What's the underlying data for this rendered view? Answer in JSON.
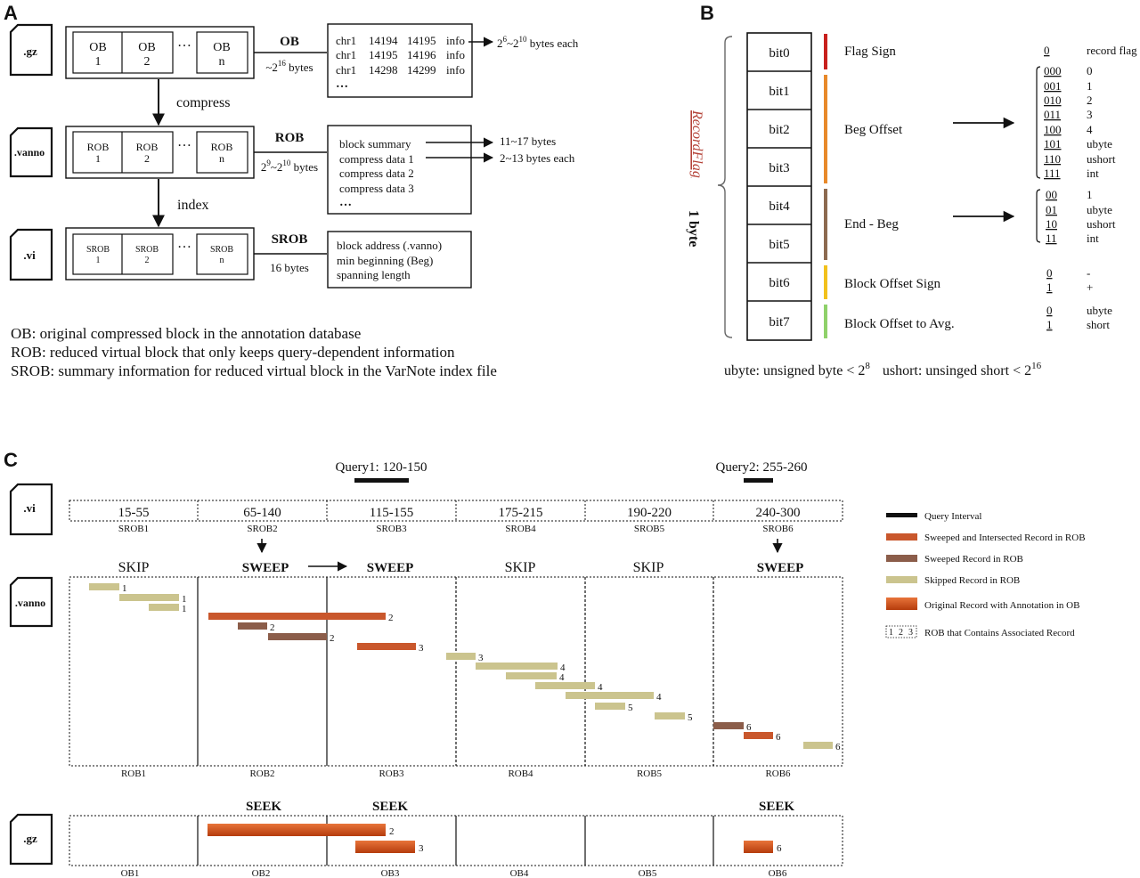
{
  "panel_labels": {
    "a": "A",
    "b": "B",
    "c": "C"
  },
  "colors": {
    "flag_red": "#c8201d",
    "flag_orange": "#e8892a",
    "flag_brown": "#8c6a50",
    "flag_yellow": "#f2c11c",
    "flag_green": "#8fd16a",
    "sweep_intersect": "#c9572c",
    "swept": "#8b5d4a",
    "skipped": "#cbc48e",
    "original": "#c64a14",
    "range_red": "#b5443a",
    "action_red": "#8b0000"
  },
  "panel_a": {
    "files": {
      "gz": ".gz",
      "vanno": ".vanno",
      "vi": ".vi"
    },
    "ob_row": {
      "block1": [
        "OB",
        "1"
      ],
      "block2": [
        "OB",
        "2"
      ],
      "ellipsis": "…",
      "blockn": [
        "OB",
        "n"
      ],
      "label": "OB",
      "size": "~2",
      "size_sup": "16",
      "size_tail": " bytes"
    },
    "ob_detail": [
      [
        "chr1",
        "14194",
        "14195",
        "info"
      ],
      [
        "chr1",
        "14195",
        "14196",
        "info"
      ],
      [
        "chr1",
        "14298",
        "14299",
        "info"
      ]
    ],
    "ob_detail_more": "…",
    "ob_each": {
      "pre": "2",
      "sup1": "6",
      "mid": "~2",
      "sup2": "10",
      "post": " bytes each"
    },
    "compress": "compress",
    "rob_row": {
      "block1": [
        "ROB",
        "1"
      ],
      "block2": [
        "ROB",
        "2"
      ],
      "ellipsis": "…",
      "blockn": [
        "ROB",
        "n"
      ],
      "label": "ROB",
      "size_pre": "2",
      "sup1": "9",
      "mid": "~2",
      "sup2": "10",
      "post": " bytes"
    },
    "rob_detail": [
      "block summary",
      "compress data 1",
      "compress data 2",
      "compress data 3"
    ],
    "rob_detail_more": "…",
    "rob_summary_size": "11~17 bytes",
    "rob_data_size": "2~13 bytes each",
    "index": "index",
    "srob_row": {
      "block1": [
        "SROB",
        "1"
      ],
      "block2": [
        "SROB",
        "2"
      ],
      "ellipsis": "…",
      "blockn": [
        "SROB",
        "n"
      ],
      "label": "SROB",
      "size": "16 bytes"
    },
    "srob_detail": [
      "block address (.vanno)",
      "min beginning (Beg)",
      "spanning length"
    ],
    "legend": [
      "OB: original compressed block in the annotation database",
      "ROB: reduced virtual block that only keeps query-dependent information",
      "SROB: summary information for reduced virtual block in the VarNote index file"
    ]
  },
  "panel_b": {
    "bits": [
      "bit0",
      "bit1",
      "bit2",
      "bit3",
      "bit4",
      "bit5",
      "bit6",
      "bit7"
    ],
    "record_flag": "RecordFlag",
    "one_byte": "1 byte",
    "fields": [
      "Flag Sign",
      "Beg Offset",
      "End - Beg",
      "Block Offset Sign",
      "Block Offset to Avg."
    ],
    "flag_sign": {
      "code": "0",
      "meaning": "record flag"
    },
    "beg_offset": [
      [
        "000",
        "0"
      ],
      [
        "001",
        "1"
      ],
      [
        "010",
        "2"
      ],
      [
        "011",
        "3"
      ],
      [
        "100",
        "4"
      ],
      [
        "101",
        "ubyte"
      ],
      [
        "110",
        "ushort"
      ],
      [
        "111",
        "int"
      ]
    ],
    "end_beg": [
      [
        "00",
        "1"
      ],
      [
        "01",
        "ubyte"
      ],
      [
        "10",
        "ushort"
      ],
      [
        "11",
        "int"
      ]
    ],
    "block_offset_sign": [
      [
        "0",
        "-"
      ],
      [
        "1",
        "+"
      ]
    ],
    "block_offset_avg": [
      [
        "0",
        "ubyte"
      ],
      [
        "1",
        "short"
      ]
    ],
    "footnote": {
      "a": "ubyte: unsigned byte < 2",
      "a_sup": "8",
      "b": "ushort: unsinged short < 2",
      "b_sup": "16"
    }
  },
  "panel_c": {
    "query1": "Query1: 120-150",
    "query2": "Query2: 255-260",
    "files": {
      "vi": ".vi",
      "vanno": ".vanno",
      "gz": ".gz"
    },
    "srob_ranges": [
      "15-55",
      "65-140",
      "115-155",
      "175-215",
      "190-220",
      "240-300"
    ],
    "srob_range_highlight": [
      false,
      true,
      true,
      false,
      false,
      true
    ],
    "srob_labels": [
      "SROB1",
      "SROB2",
      "SROB3",
      "SROB4",
      "SROB5",
      "SROB6"
    ],
    "actions": [
      "SKIP",
      "SWEEP",
      "SWEEP",
      "SKIP",
      "SKIP",
      "SWEEP"
    ],
    "rob_labels": [
      "ROB1",
      "ROB2",
      "ROB3",
      "ROB4",
      "ROB5",
      "ROB6"
    ],
    "ob_labels": [
      "OB1",
      "OB2",
      "OB3",
      "OB4",
      "OB5",
      "OB6"
    ],
    "seek": [
      "",
      "SEEK",
      "SEEK",
      "",
      "",
      "SEEK"
    ],
    "records": [
      {
        "kind": "skipped",
        "label": "1"
      },
      {
        "kind": "skipped",
        "label": "1"
      },
      {
        "kind": "skipped",
        "label": "1"
      },
      {
        "kind": "intersect",
        "label": "2"
      },
      {
        "kind": "swept",
        "label": "2"
      },
      {
        "kind": "swept",
        "label": "2"
      },
      {
        "kind": "intersect",
        "label": "3"
      },
      {
        "kind": "skipped",
        "label": "3"
      },
      {
        "kind": "skipped",
        "label": "4"
      },
      {
        "kind": "skipped",
        "label": "4"
      },
      {
        "kind": "skipped",
        "label": "4"
      },
      {
        "kind": "skipped",
        "label": "4"
      },
      {
        "kind": "skipped",
        "label": "5"
      },
      {
        "kind": "skipped",
        "label": "5"
      },
      {
        "kind": "swept",
        "label": "6"
      },
      {
        "kind": "intersect",
        "label": "6"
      },
      {
        "kind": "skipped",
        "label": "6"
      }
    ],
    "ob_records": [
      {
        "label": "2"
      },
      {
        "label": "3"
      },
      {
        "label": "6"
      }
    ],
    "legend": [
      "Query Interval",
      "Sweeped and Intersected Record in ROB",
      "Sweeped Record in ROB",
      "Skipped Record in ROB",
      "Original Record with Annotation in OB",
      "ROB that Contains Associated Record"
    ],
    "legend_rob_box": [
      "1",
      "2",
      "3"
    ]
  }
}
